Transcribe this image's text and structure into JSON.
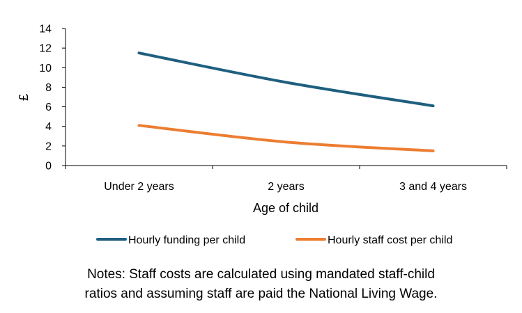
{
  "chart_data": {
    "type": "line",
    "title": "",
    "xlabel": "Age of child",
    "ylabel": "£",
    "categories": [
      "Under 2 years",
      "2 years",
      "3 and 4 years"
    ],
    "ylim": [
      0,
      14
    ],
    "yticks": [
      0,
      2,
      4,
      6,
      8,
      10,
      12,
      14
    ],
    "grid": false,
    "legend_position": "bottom",
    "series": [
      {
        "name": "Hourly funding per child",
        "color": "#1f5f7f",
        "values": [
          11.5,
          8.5,
          6.1
        ]
      },
      {
        "name": "Hourly staff cost per child",
        "color": "#ed7d31",
        "values": [
          4.1,
          2.4,
          1.5
        ]
      }
    ]
  },
  "notes": {
    "line1": "Notes: Staff costs are calculated using mandated staff-child",
    "line2": "ratios and assuming staff are paid the National Living Wage."
  }
}
